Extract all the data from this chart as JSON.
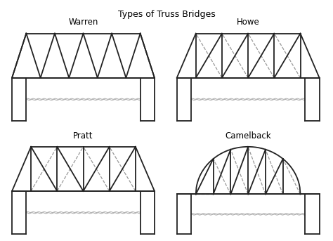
{
  "title": "Types of Truss Bridges",
  "title_fontsize": 9,
  "labels": [
    "Warren",
    "Howe",
    "Pratt",
    "Camelback"
  ],
  "label_fontsize": 8.5,
  "bg_color": "#ffffff",
  "line_color": "#222222",
  "dashed_color": "#999999",
  "water_color": "#aaaaaa",
  "fig_width": 4.74,
  "fig_height": 3.43,
  "dpi": 100
}
